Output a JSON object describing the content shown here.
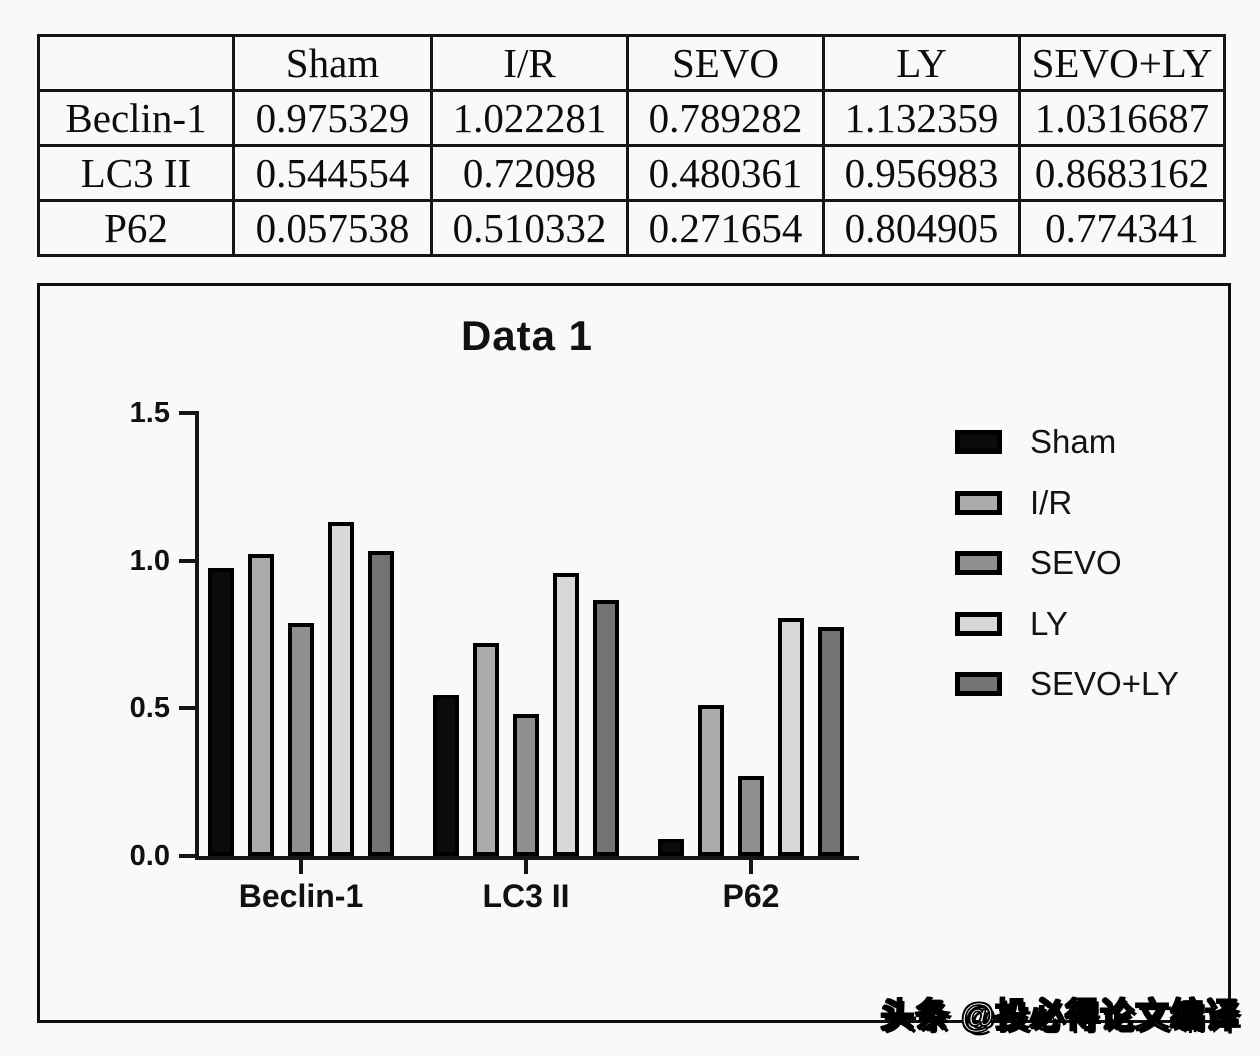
{
  "table": {
    "corner_label": "",
    "columns": [
      "Sham",
      "I/R",
      "SEVO",
      "LY",
      "SEVO+LY"
    ],
    "rows": [
      {
        "label": "Beclin-1",
        "values": [
          "0.975329",
          "1.022281",
          "0.789282",
          "1.132359",
          "1.0316687"
        ]
      },
      {
        "label": "LC3 II",
        "values": [
          "0.544554",
          "0.72098",
          "0.480361",
          "0.956983",
          "0.8683162"
        ]
      },
      {
        "label": "P62",
        "values": [
          "0.057538",
          "0.510332",
          "0.271654",
          "0.804905",
          "0.774341"
        ]
      }
    ]
  },
  "chart_data": {
    "type": "bar",
    "title": "Data 1",
    "categories": [
      "Beclin-1",
      "LC3 II",
      "P62"
    ],
    "series": [
      {
        "name": "Sham",
        "color": "#0b0b0b",
        "values": [
          0.975329,
          0.544554,
          0.057538
        ]
      },
      {
        "name": "I/R",
        "color": "#ababab",
        "values": [
          1.022281,
          0.72098,
          0.510332
        ]
      },
      {
        "name": "SEVO",
        "color": "#8f8f8f",
        "values": [
          0.789282,
          0.480361,
          0.271654
        ]
      },
      {
        "name": "LY",
        "color": "#d8d8d8",
        "values": [
          1.132359,
          0.956983,
          0.804905
        ]
      },
      {
        "name": "SEVO+LY",
        "color": "#737373",
        "values": [
          1.0316687,
          0.8683162,
          0.774341
        ]
      }
    ],
    "ylim": [
      0,
      1.5
    ],
    "yticks": [
      "0.0",
      "0.5",
      "1.0",
      "1.5"
    ],
    "xlabel": "",
    "ylabel": "",
    "grid": false,
    "legend_position": "right",
    "bar_outline_color": "#000000",
    "axis_color": "#161616"
  },
  "watermark": {
    "text": "头条 @投必得论文编译"
  }
}
